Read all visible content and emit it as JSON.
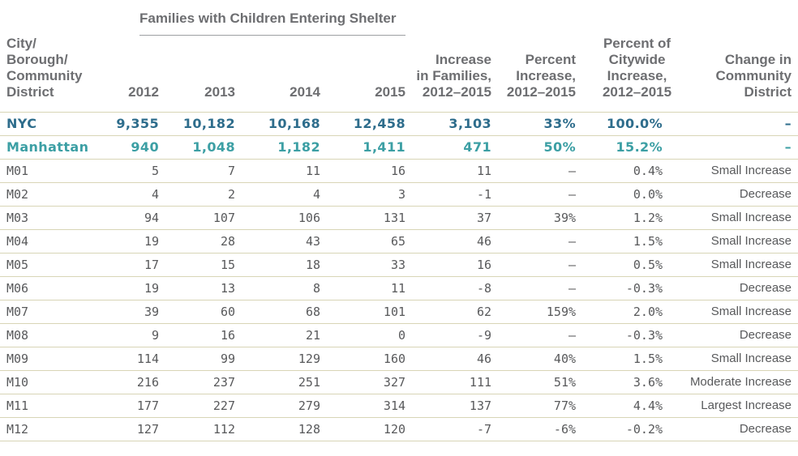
{
  "chart_data": {
    "type": "table",
    "title": "Families with Children Entering Shelter",
    "col1_header": "City/\nBorough/\nCommunity\nDistrict",
    "year_columns": [
      "2012",
      "2013",
      "2014",
      "2015"
    ],
    "stat_columns": [
      "Increase\nin Families,\n2012–2015",
      "Percent\nIncrease,\n2012–2015",
      "Percent of\nCitywide\nIncrease,\n2012–2015",
      "Change in\nCommunity\nDistrict"
    ],
    "rows": [
      {
        "label": "NYC",
        "style": "nyc",
        "values": [
          "9,355",
          "10,182",
          "10,168",
          "12,458",
          "3,103",
          "33%",
          "100.0%",
          "–"
        ]
      },
      {
        "label": "Manhattan",
        "style": "manhattan",
        "values": [
          "940",
          "1,048",
          "1,182",
          "1,411",
          "471",
          "50%",
          "15.2%",
          "–"
        ]
      },
      {
        "label": "M01",
        "style": "district",
        "values": [
          "5",
          "7",
          "11",
          "16",
          "11",
          "–",
          "0.4%",
          "Small Increase"
        ]
      },
      {
        "label": "M02",
        "style": "district",
        "values": [
          "4",
          "2",
          "4",
          "3",
          "-1",
          "–",
          "0.0%",
          "Decrease"
        ]
      },
      {
        "label": "M03",
        "style": "district",
        "values": [
          "94",
          "107",
          "106",
          "131",
          "37",
          "39%",
          "1.2%",
          "Small Increase"
        ]
      },
      {
        "label": "M04",
        "style": "district",
        "values": [
          "19",
          "28",
          "43",
          "65",
          "46",
          "–",
          "1.5%",
          "Small Increase"
        ]
      },
      {
        "label": "M05",
        "style": "district",
        "values": [
          "17",
          "15",
          "18",
          "33",
          "16",
          "–",
          "0.5%",
          "Small Increase"
        ]
      },
      {
        "label": "M06",
        "style": "district",
        "values": [
          "19",
          "13",
          "8",
          "11",
          "-8",
          "–",
          "-0.3%",
          "Decrease"
        ]
      },
      {
        "label": "M07",
        "style": "district",
        "values": [
          "39",
          "60",
          "68",
          "101",
          "62",
          "159%",
          "2.0%",
          "Small Increase"
        ]
      },
      {
        "label": "M08",
        "style": "district",
        "values": [
          "9",
          "16",
          "21",
          "0",
          "-9",
          "–",
          "-0.3%",
          "Decrease"
        ]
      },
      {
        "label": "M09",
        "style": "district",
        "values": [
          "114",
          "99",
          "129",
          "160",
          "46",
          "40%",
          "1.5%",
          "Small Increase"
        ]
      },
      {
        "label": "M10",
        "style": "district",
        "values": [
          "216",
          "237",
          "251",
          "327",
          "111",
          "51%",
          "3.6%",
          "Moderate Increase"
        ]
      },
      {
        "label": "M11",
        "style": "district",
        "values": [
          "177",
          "227",
          "279",
          "314",
          "137",
          "77%",
          "4.4%",
          "Largest Increase"
        ]
      },
      {
        "label": "M12",
        "style": "district",
        "values": [
          "127",
          "112",
          "128",
          "120",
          "-7",
          "-6%",
          "-0.2%",
          "Decrease"
        ]
      }
    ],
    "colors": {
      "nyc_row": "#2e6d8c",
      "manhattan_row": "#3c9fa4",
      "district_text": "#58595b",
      "header_text": "#6d6e71",
      "divider": "#d8d5b6",
      "group_header_underline": "#9d9fa2"
    },
    "layout": {
      "grid": "horizontal-dividers-only",
      "legend": "none"
    }
  }
}
